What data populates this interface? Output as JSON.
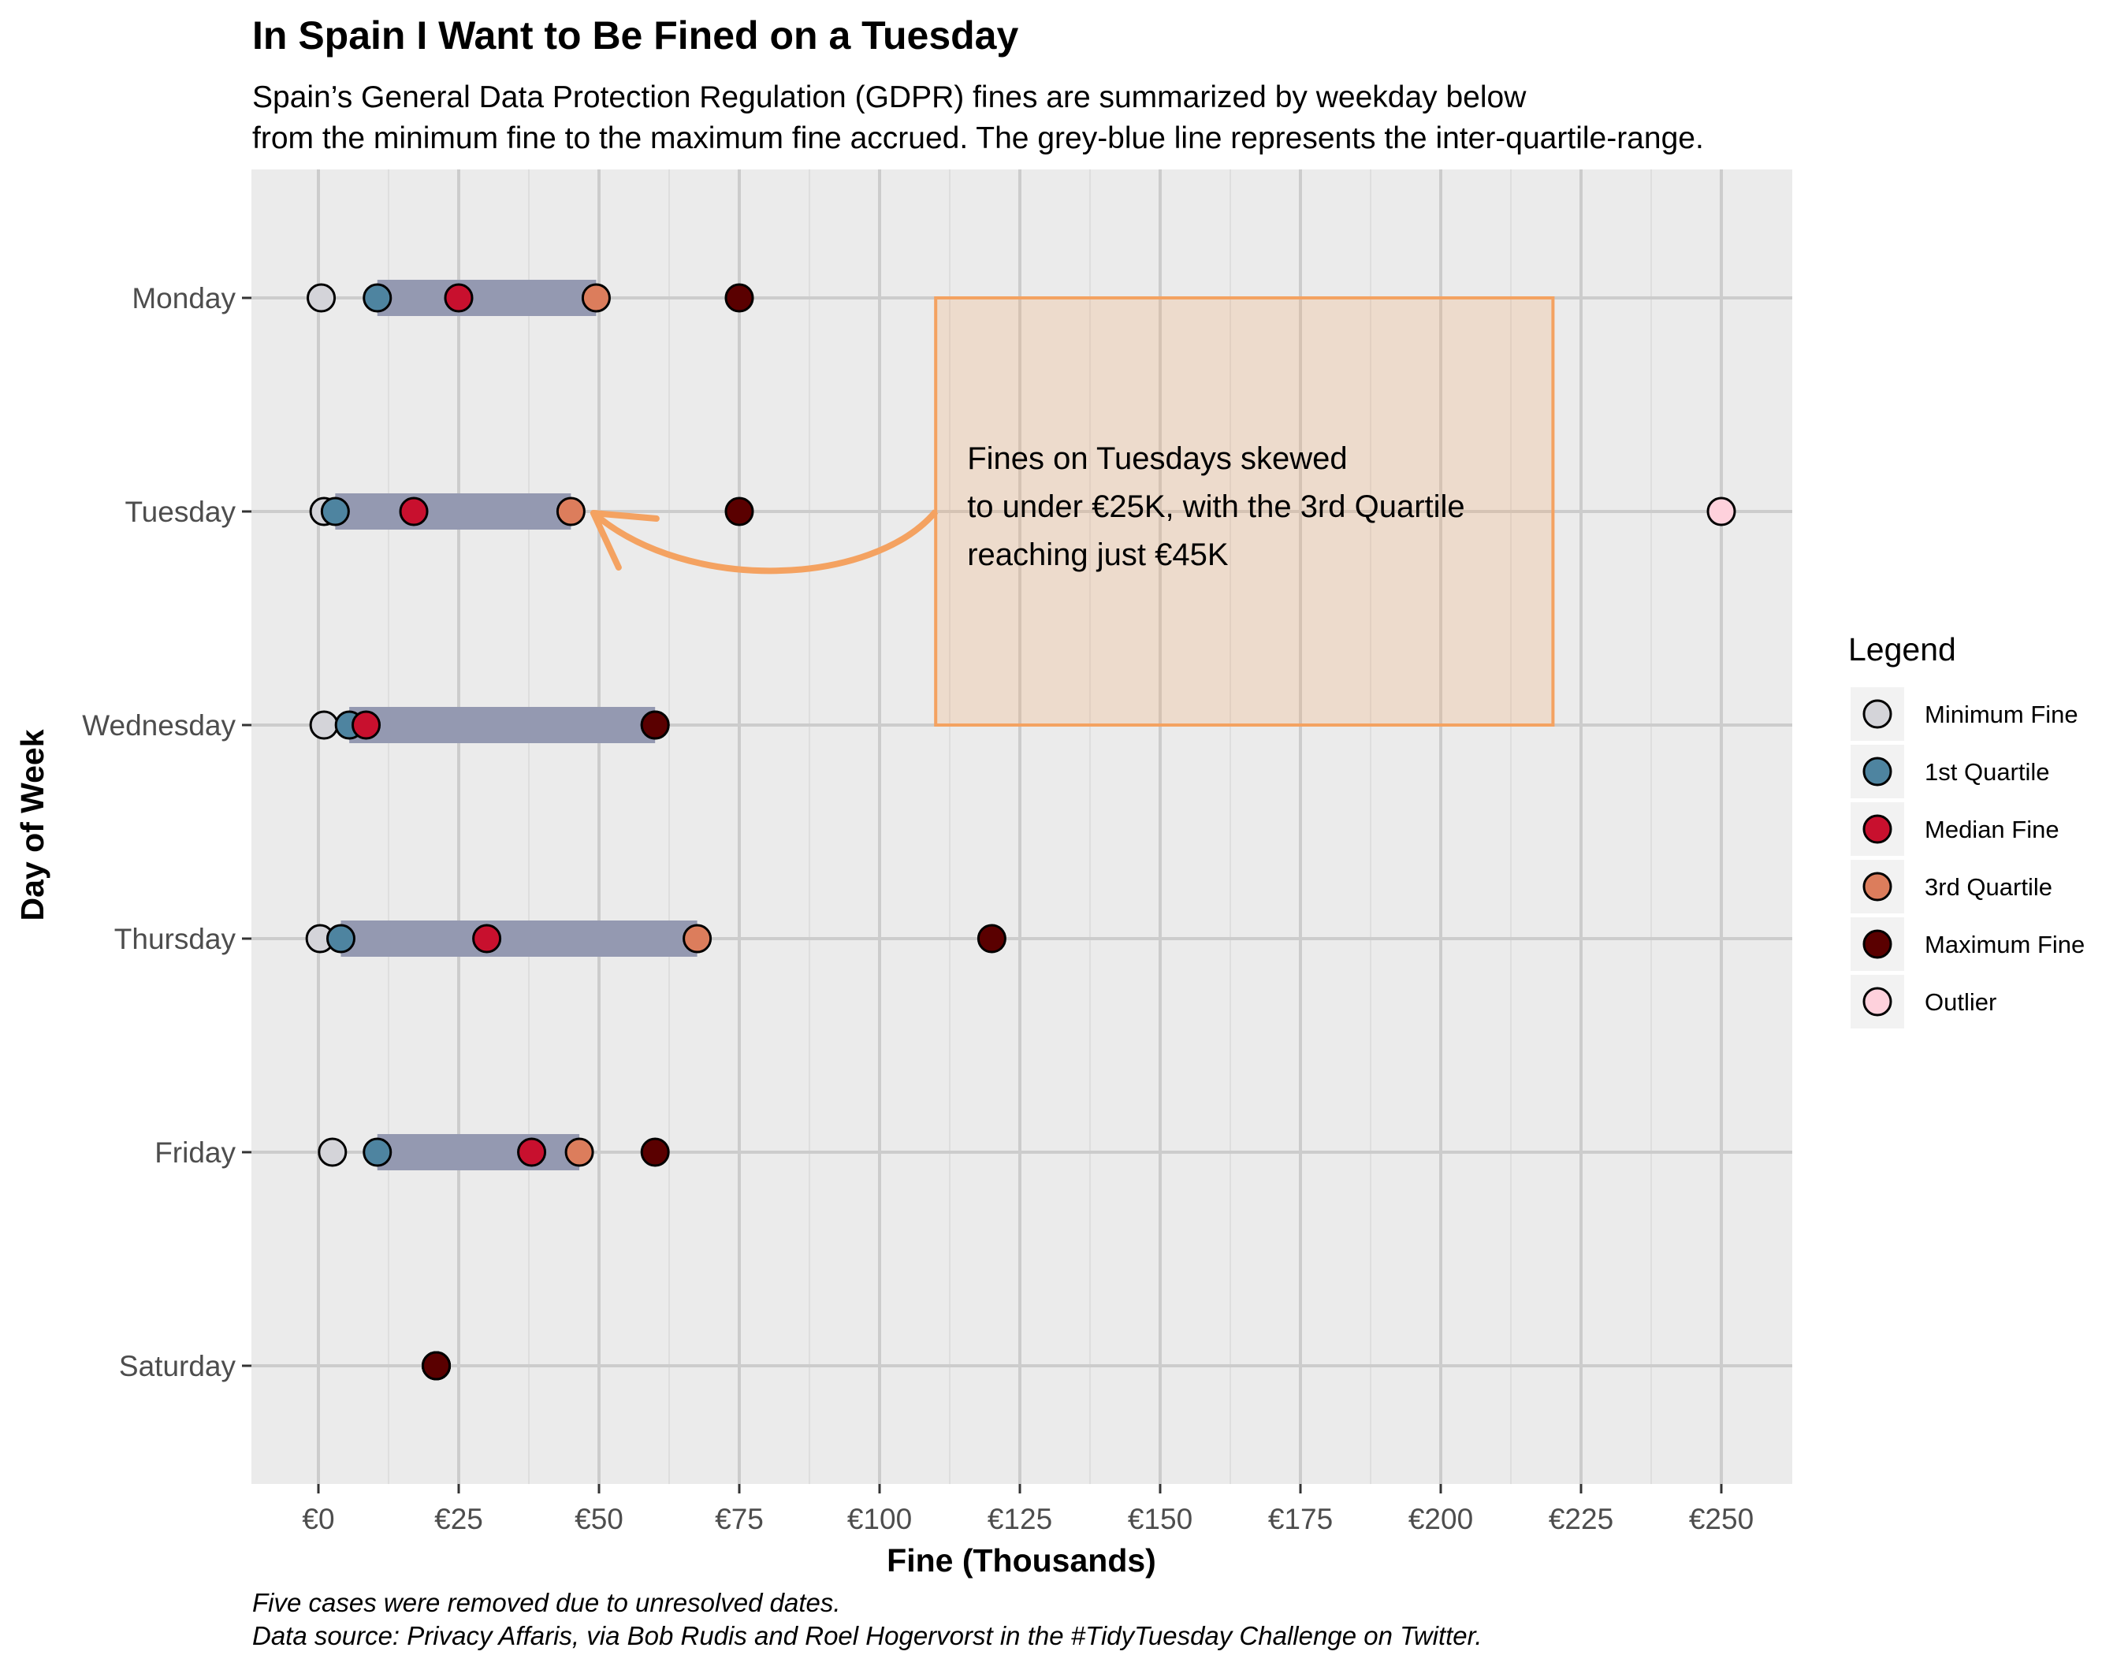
{
  "chart_data": {
    "type": "scatter",
    "title": "In Spain I Want to Be Fined on a Tuesday",
    "subtitle_lines": [
      "Spain’s General Data Protection Regulation (GDPR) fines are summarized by weekday below",
      "from the minimum fine to the maximum fine accrued. The grey-blue line represents the inter-quartile-range."
    ],
    "xlabel": "Fine (Thousands)",
    "ylabel": "Day of Week",
    "xlim": [
      -12,
      263
    ],
    "x_ticks": [
      0,
      25,
      50,
      75,
      100,
      125,
      150,
      175,
      200,
      225,
      250
    ],
    "x_tick_labels": [
      "€0",
      "€25",
      "€50",
      "€75",
      "€100",
      "€125",
      "€150",
      "€175",
      "€200",
      "€225",
      "€250"
    ],
    "categories": [
      "Monday",
      "Tuesday",
      "Wednesday",
      "Thursday",
      "Friday",
      "Saturday"
    ],
    "grid": true,
    "legend_position": "right",
    "series": [
      {
        "name": "Minimum Fine",
        "color": "#d4d4d9",
        "values": [
          0.5,
          1,
          1,
          0.3,
          2.5,
          21
        ]
      },
      {
        "name": "1st Quartile",
        "color": "#4e84a0",
        "values": [
          10.5,
          3,
          5.5,
          4,
          10.5,
          21
        ]
      },
      {
        "name": "Median Fine",
        "color": "#c8102e",
        "values": [
          25,
          17,
          8.5,
          30,
          38,
          21
        ]
      },
      {
        "name": "3rd Quartile",
        "color": "#dc7d5c",
        "values": [
          49.5,
          45,
          60,
          67.5,
          46.5,
          21
        ]
      },
      {
        "name": "Maximum Fine",
        "color": "#5a0000",
        "values": [
          75,
          75,
          60,
          120,
          60,
          21
        ]
      },
      {
        "name": "Outlier",
        "color": "#fed1dc",
        "points": [
          {
            "category": "Tuesday",
            "x": 250
          }
        ]
      }
    ],
    "iqr_bar_color": "#9499b1",
    "legend_title": "Legend",
    "annotation": {
      "lines": [
        "Fines on Tuesdays skewed",
        "to under €25K, with the 3rd Quartile",
        "reaching just €45K"
      ],
      "box_x_range": [
        110,
        220
      ],
      "box_category_range": [
        "Monday",
        "Wednesday"
      ],
      "box_color": "#f4a261",
      "arrow_to": {
        "category": "Tuesday",
        "x": 49
      }
    },
    "caption_lines": [
      "Five cases were removed due to unresolved dates.",
      "Data source: Privacy Affaris, via Bob Rudis and Roel Hogervorst in the #TidyTuesday Challenge on Twitter."
    ]
  }
}
